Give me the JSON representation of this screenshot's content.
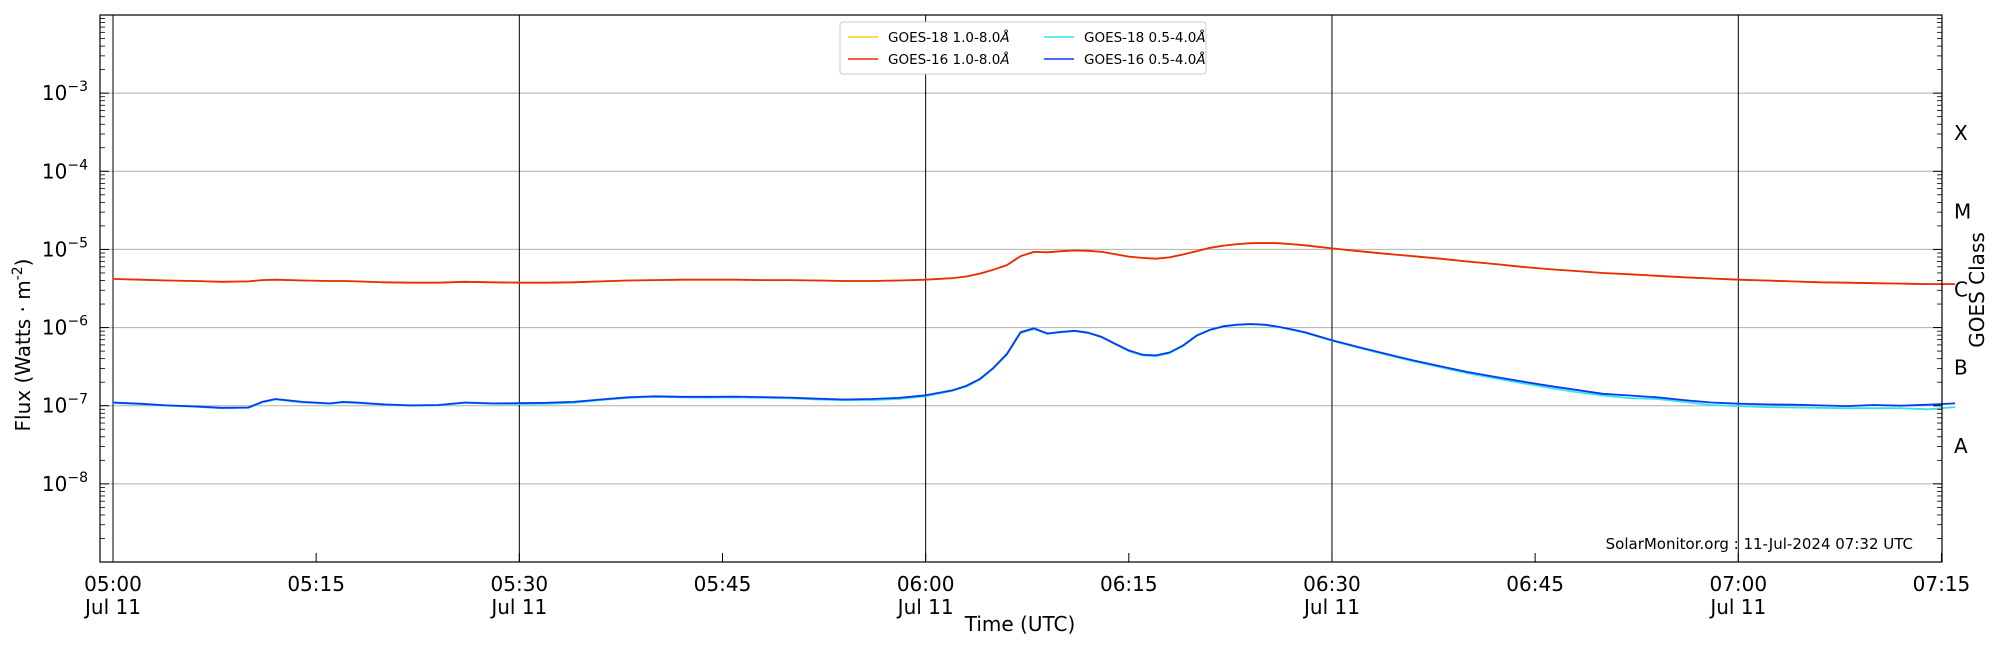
{
  "chart_data": {
    "type": "line",
    "xlabel": "Time (UTC)",
    "ylabel": "Flux (Watts · m",
    "ylabel_sup": "-2",
    "ylabel_close": ")",
    "y2label": "GOES Class",
    "yscale": "log",
    "ylim": [
      1e-09,
      0.01
    ],
    "xlim": [
      "05:00",
      "07:16"
    ],
    "grid": "horizontal at decades, vertical at half-hours",
    "legend_position": "top-center",
    "watermark": "SolarMonitor.org : 11-Jul-2024 07:32 UTC",
    "x_ticks": [
      {
        "t": "05:00",
        "time": "05:00",
        "date": "Jul 11"
      },
      {
        "t": "05:15",
        "time": "05:15",
        "date": ""
      },
      {
        "t": "05:30",
        "time": "05:30",
        "date": "Jul 11"
      },
      {
        "t": "05:45",
        "time": "05:45",
        "date": ""
      },
      {
        "t": "06:00",
        "time": "06:00",
        "date": "Jul 11"
      },
      {
        "t": "06:15",
        "time": "06:15",
        "date": ""
      },
      {
        "t": "06:30",
        "time": "06:30",
        "date": "Jul 11"
      },
      {
        "t": "06:45",
        "time": "06:45",
        "date": ""
      },
      {
        "t": "07:00",
        "time": "07:00",
        "date": "Jul 11"
      },
      {
        "t": "07:15",
        "time": "07:15",
        "date": ""
      }
    ],
    "y_ticks": [
      {
        "exp": -8,
        "base": "10",
        "sup": "−8"
      },
      {
        "exp": -7,
        "base": "10",
        "sup": "−7"
      },
      {
        "exp": -6,
        "base": "10",
        "sup": "−6"
      },
      {
        "exp": -5,
        "base": "10",
        "sup": "−5"
      },
      {
        "exp": -4,
        "base": "10",
        "sup": "−4"
      },
      {
        "exp": -3,
        "base": "10",
        "sup": "−3"
      }
    ],
    "goes_classes": [
      {
        "label": "A",
        "exp": -7.5
      },
      {
        "label": "B",
        "exp": -6.5
      },
      {
        "label": "C",
        "exp": -5.5
      },
      {
        "label": "M",
        "exp": -4.5
      },
      {
        "label": "X",
        "exp": -3.5
      }
    ],
    "vertical_grid_times": [
      "05:00",
      "05:30",
      "06:00",
      "06:30",
      "07:00"
    ],
    "x": [
      "05:00",
      "05:02",
      "05:04",
      "05:06",
      "05:08",
      "05:10",
      "05:11",
      "05:12",
      "05:14",
      "05:16",
      "05:17",
      "05:18",
      "05:20",
      "05:22",
      "05:24",
      "05:26",
      "05:28",
      "05:30",
      "05:32",
      "05:34",
      "05:36",
      "05:38",
      "05:40",
      "05:42",
      "05:44",
      "05:46",
      "05:48",
      "05:50",
      "05:52",
      "05:54",
      "05:56",
      "05:58",
      "06:00",
      "06:02",
      "06:03",
      "06:04",
      "06:05",
      "06:06",
      "06:07",
      "06:08",
      "06:09",
      "06:10",
      "06:11",
      "06:12",
      "06:13",
      "06:14",
      "06:15",
      "06:16",
      "06:17",
      "06:18",
      "06:19",
      "06:20",
      "06:21",
      "06:22",
      "06:23",
      "06:24",
      "06:25",
      "06:26",
      "06:27",
      "06:28",
      "06:30",
      "06:32",
      "06:34",
      "06:36",
      "06:38",
      "06:40",
      "06:42",
      "06:44",
      "06:46",
      "06:48",
      "06:50",
      "06:52",
      "06:54",
      "06:56",
      "06:58",
      "07:00",
      "07:02",
      "07:04",
      "07:06",
      "07:08",
      "07:10",
      "07:12",
      "07:14",
      "07:16"
    ],
    "series": [
      {
        "name": "GOES-18 1.0-8.0",
        "unit_symbol": "Å",
        "color": "#f5d21a",
        "values": [
          4.2e-06,
          4.1e-06,
          4e-06,
          3.95e-06,
          3.85e-06,
          3.9e-06,
          4.05e-06,
          4.1e-06,
          4e-06,
          3.95e-06,
          3.95e-06,
          3.9e-06,
          3.8e-06,
          3.75e-06,
          3.75e-06,
          3.85e-06,
          3.8e-06,
          3.75e-06,
          3.75e-06,
          3.8e-06,
          3.9e-06,
          4e-06,
          4.05e-06,
          4.1e-06,
          4.1e-06,
          4.1e-06,
          4.05e-06,
          4.05e-06,
          4e-06,
          3.95e-06,
          3.95e-06,
          4e-06,
          4.1e-06,
          4.3e-06,
          4.5e-06,
          4.9e-06,
          5.5e-06,
          6.3e-06,
          8.2e-06,
          9.3e-06,
          9.2e-06,
          9.5e-06,
          9.7e-06,
          9.6e-06,
          9.3e-06,
          8.7e-06,
          8.1e-06,
          7.8e-06,
          7.6e-06,
          7.9e-06,
          8.6e-06,
          9.5e-06,
          1.05e-05,
          1.12e-05,
          1.17e-05,
          1.2e-05,
          1.21e-05,
          1.2e-05,
          1.17e-05,
          1.13e-05,
          1.03e-05,
          9.5e-06,
          8.8e-06,
          8.2e-06,
          7.6e-06,
          7e-06,
          6.5e-06,
          6e-06,
          5.6e-06,
          5.3e-06,
          5e-06,
          4.8e-06,
          4.6e-06,
          4.4e-06,
          4.25e-06,
          4.1e-06,
          4e-06,
          3.9e-06,
          3.8e-06,
          3.75e-06,
          3.7e-06,
          3.65e-06,
          3.6e-06,
          3.6e-06
        ]
      },
      {
        "name": "GOES-16 1.0-8.0",
        "unit_symbol": "Å",
        "color": "#e82c0c",
        "values": [
          4.2e-06,
          4.1e-06,
          4e-06,
          3.95e-06,
          3.85e-06,
          3.9e-06,
          4.05e-06,
          4.1e-06,
          4e-06,
          3.95e-06,
          3.95e-06,
          3.9e-06,
          3.8e-06,
          3.75e-06,
          3.75e-06,
          3.85e-06,
          3.8e-06,
          3.75e-06,
          3.75e-06,
          3.8e-06,
          3.9e-06,
          4e-06,
          4.05e-06,
          4.1e-06,
          4.1e-06,
          4.1e-06,
          4.05e-06,
          4.05e-06,
          4e-06,
          3.95e-06,
          3.95e-06,
          4e-06,
          4.1e-06,
          4.3e-06,
          4.5e-06,
          4.9e-06,
          5.5e-06,
          6.3e-06,
          8.2e-06,
          9.3e-06,
          9.2e-06,
          9.5e-06,
          9.7e-06,
          9.6e-06,
          9.3e-06,
          8.7e-06,
          8.1e-06,
          7.8e-06,
          7.6e-06,
          7.9e-06,
          8.6e-06,
          9.5e-06,
          1.05e-05,
          1.12e-05,
          1.17e-05,
          1.2e-05,
          1.21e-05,
          1.2e-05,
          1.17e-05,
          1.13e-05,
          1.03e-05,
          9.5e-06,
          8.8e-06,
          8.2e-06,
          7.6e-06,
          7e-06,
          6.5e-06,
          6e-06,
          5.6e-06,
          5.3e-06,
          5e-06,
          4.8e-06,
          4.6e-06,
          4.4e-06,
          4.25e-06,
          4.1e-06,
          4e-06,
          3.9e-06,
          3.8e-06,
          3.75e-06,
          3.7e-06,
          3.65e-06,
          3.6e-06,
          3.6e-06
        ]
      },
      {
        "name": "GOES-18 0.5-4.0",
        "unit_symbol": "Å",
        "color": "#2ee6ee",
        "values": [
          1.08e-07,
          1.05e-07,
          1e-07,
          9.7e-08,
          9.3e-08,
          9.4e-08,
          1.1e-07,
          1.2e-07,
          1.1e-07,
          1.06e-07,
          1.1e-07,
          1.08e-07,
          1.03e-07,
          1e-07,
          1.01e-07,
          1.09e-07,
          1.06e-07,
          1.05e-07,
          1.06e-07,
          1.09e-07,
          1.18e-07,
          1.26e-07,
          1.3e-07,
          1.28e-07,
          1.27e-07,
          1.28e-07,
          1.26e-07,
          1.24e-07,
          1.2e-07,
          1.17e-07,
          1.18e-07,
          1.22e-07,
          1.32e-07,
          1.55e-07,
          1.75e-07,
          2.15e-07,
          3e-07,
          4.5e-07,
          8.5e-07,
          9.6e-07,
          8.3e-07,
          8.7e-07,
          9e-07,
          8.5e-07,
          7.5e-07,
          6.1e-07,
          5e-07,
          4.4e-07,
          4.3e-07,
          4.7e-07,
          5.8e-07,
          7.8e-07,
          9.3e-07,
          1.03e-06,
          1.08e-06,
          1.1e-06,
          1.08e-06,
          1.02e-06,
          9.4e-07,
          8.6e-07,
          6.8e-07,
          5.5e-07,
          4.5e-07,
          3.7e-07,
          3.1e-07,
          2.6e-07,
          2.25e-07,
          1.95e-07,
          1.7e-07,
          1.5e-07,
          1.35e-07,
          1.25e-07,
          1.22e-07,
          1.12e-07,
          1.02e-07,
          9.9e-08,
          9.6e-08,
          9.5e-08,
          9.4e-08,
          9.3e-08,
          9.3e-08,
          9.3e-08,
          9e-08,
          9.6e-08
        ]
      },
      {
        "name": "GOES-16 0.5-4.0",
        "unit_symbol": "Å",
        "color": "#0a3af0",
        "values": [
          1.1e-07,
          1.06e-07,
          1.01e-07,
          9.8e-08,
          9.4e-08,
          9.5e-08,
          1.12e-07,
          1.22e-07,
          1.12e-07,
          1.07e-07,
          1.12e-07,
          1.1e-07,
          1.04e-07,
          1.01e-07,
          1.02e-07,
          1.1e-07,
          1.07e-07,
          1.08e-07,
          1.09e-07,
          1.12e-07,
          1.2e-07,
          1.28e-07,
          1.32e-07,
          1.3e-07,
          1.3e-07,
          1.31e-07,
          1.29e-07,
          1.27e-07,
          1.23e-07,
          1.2e-07,
          1.22e-07,
          1.26e-07,
          1.36e-07,
          1.58e-07,
          1.8e-07,
          2.2e-07,
          3.05e-07,
          4.6e-07,
          8.7e-07,
          9.8e-07,
          8.4e-07,
          8.8e-07,
          9.1e-07,
          8.6e-07,
          7.6e-07,
          6.2e-07,
          5.1e-07,
          4.5e-07,
          4.4e-07,
          4.8e-07,
          5.9e-07,
          7.9e-07,
          9.4e-07,
          1.04e-06,
          1.09e-06,
          1.11e-06,
          1.09e-06,
          1.03e-06,
          9.5e-07,
          8.7e-07,
          6.9e-07,
          5.6e-07,
          4.6e-07,
          3.8e-07,
          3.2e-07,
          2.7e-07,
          2.35e-07,
          2.05e-07,
          1.8e-07,
          1.6e-07,
          1.42e-07,
          1.35e-07,
          1.28e-07,
          1.18e-07,
          1.1e-07,
          1.06e-07,
          1.04e-07,
          1.03e-07,
          1.01e-07,
          9.9e-08,
          1.02e-07,
          1e-07,
          1.03e-07,
          1.07e-07
        ]
      }
    ]
  }
}
